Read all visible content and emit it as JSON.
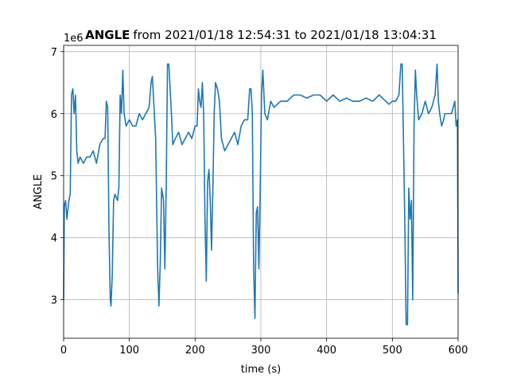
{
  "chart_data": {
    "type": "line",
    "title_bold": "ANGLE",
    "title_rest": "from 2021/01/18 12:54:31 to 2021/01/18 13:04:31",
    "x_label": "time (s)",
    "y_label": "ANGLE",
    "y_offset_label": "1e6",
    "color": "#1f77b4",
    "grid": true,
    "xlim": [
      0,
      600
    ],
    "ylim": [
      2.38,
      7.1
    ],
    "xticks": [
      0,
      100,
      200,
      300,
      400,
      500,
      600
    ],
    "yticks": [
      3,
      4,
      5,
      6,
      7
    ],
    "x": [
      0,
      1,
      3,
      5,
      8,
      10,
      12,
      14,
      16,
      18,
      20,
      22,
      25,
      30,
      35,
      40,
      45,
      50,
      55,
      60,
      63,
      65,
      67,
      69,
      71,
      72,
      74,
      76,
      78,
      82,
      84,
      86,
      88,
      90,
      92,
      95,
      100,
      105,
      110,
      115,
      120,
      125,
      130,
      133,
      135,
      137,
      140,
      143,
      145,
      147,
      149,
      152,
      154,
      156,
      158,
      160,
      162,
      164,
      166,
      170,
      175,
      180,
      185,
      190,
      195,
      200,
      203,
      205,
      207,
      209,
      211,
      213,
      215,
      217,
      219,
      221,
      223,
      225,
      227,
      229,
      231,
      234,
      237,
      240,
      245,
      250,
      255,
      260,
      265,
      270,
      275,
      280,
      283,
      285,
      287,
      289,
      291,
      293,
      295,
      297,
      299,
      301,
      303,
      306,
      310,
      315,
      320,
      330,
      340,
      350,
      360,
      370,
      380,
      390,
      400,
      410,
      420,
      430,
      440,
      450,
      460,
      470,
      480,
      490,
      495,
      500,
      505,
      510,
      513,
      515,
      517,
      519,
      521,
      523,
      525,
      527,
      529,
      531,
      533,
      535,
      537,
      540,
      545,
      550,
      555,
      560,
      565,
      568,
      570,
      572,
      575,
      578,
      580,
      585,
      590,
      595,
      597,
      599,
      600
    ],
    "values": [
      3.0,
      4.5,
      4.6,
      4.3,
      4.6,
      4.7,
      6.3,
      6.4,
      6.0,
      6.3,
      5.4,
      5.2,
      5.3,
      5.2,
      5.3,
      5.3,
      5.4,
      5.2,
      5.5,
      5.6,
      5.6,
      6.2,
      6.1,
      4.1,
      3.0,
      2.9,
      3.4,
      4.6,
      4.7,
      4.6,
      4.8,
      6.3,
      6.0,
      6.7,
      6.0,
      5.8,
      5.9,
      5.8,
      5.8,
      6.0,
      5.9,
      6.0,
      6.1,
      6.5,
      6.6,
      6.2,
      5.6,
      3.5,
      2.9,
      3.6,
      4.8,
      4.6,
      3.5,
      4.8,
      6.8,
      6.8,
      6.4,
      6.0,
      5.5,
      5.6,
      5.7,
      5.5,
      5.6,
      5.7,
      5.6,
      5.8,
      5.8,
      6.4,
      6.2,
      6.1,
      6.5,
      6.0,
      4.3,
      3.3,
      4.9,
      5.1,
      4.6,
      3.8,
      4.8,
      6.0,
      6.5,
      6.4,
      6.2,
      5.6,
      5.4,
      5.5,
      5.6,
      5.7,
      5.5,
      5.8,
      5.9,
      5.9,
      6.4,
      6.4,
      6.0,
      3.5,
      2.7,
      4.4,
      4.5,
      3.5,
      4.8,
      6.3,
      6.7,
      6.0,
      5.9,
      6.2,
      6.1,
      6.2,
      6.2,
      6.3,
      6.3,
      6.25,
      6.3,
      6.3,
      6.2,
      6.3,
      6.2,
      6.25,
      6.2,
      6.2,
      6.25,
      6.2,
      6.3,
      6.2,
      6.15,
      6.2,
      6.2,
      6.3,
      6.8,
      6.8,
      5.5,
      4.2,
      2.6,
      2.6,
      4.8,
      4.3,
      4.6,
      3.0,
      5.8,
      6.7,
      6.3,
      5.9,
      6.0,
      6.2,
      6.0,
      6.1,
      6.3,
      6.8,
      6.2,
      6.0,
      5.8,
      5.9,
      6.0,
      6.0,
      6.0,
      6.2,
      5.8,
      5.9,
      3.1
    ]
  }
}
